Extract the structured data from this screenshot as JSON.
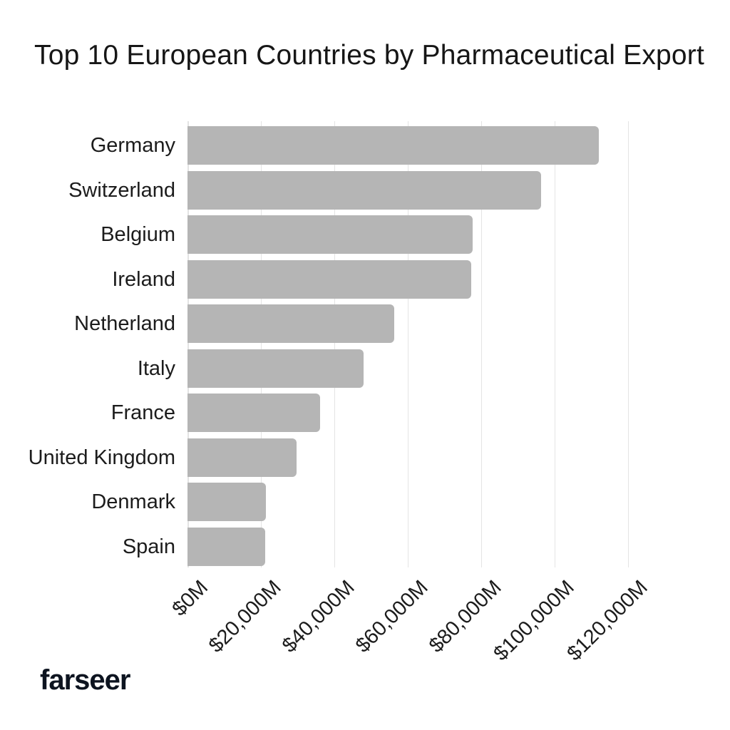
{
  "chart_data": {
    "type": "bar",
    "orientation": "horizontal",
    "title": "Top 10 European Countries by Pharmaceutical Export",
    "categories": [
      "Germany",
      "Switzerland",
      "Belgium",
      "Ireland",
      "Netherland",
      "Italy",
      "France",
      "United Kingdom",
      "Denmark",
      "Spain"
    ],
    "values": [
      112200,
      96400,
      77800,
      77300,
      56300,
      48000,
      36100,
      29800,
      21400,
      21200
    ],
    "x_ticks": [
      0,
      20000,
      40000,
      60000,
      80000,
      100000,
      120000
    ],
    "x_tick_labels": [
      "$0M",
      "$20,000M",
      "$40,000M",
      "$60,000M",
      "$80,000M",
      "$100,000M",
      "$120,000M"
    ],
    "xlim": [
      0,
      120000
    ],
    "grid": "vertical",
    "legend": "none",
    "bar_color": "#b5b5b5",
    "gridline_color": "#e4e4e4",
    "text_color": "#1c1c1c",
    "title_color": "#161616"
  },
  "branding": {
    "logo_text": "farseer",
    "logo_color": "#0d1420"
  }
}
